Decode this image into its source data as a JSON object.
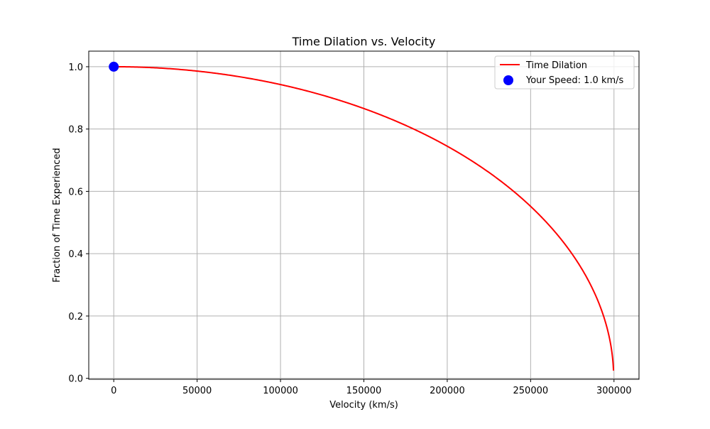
{
  "chart_data": {
    "type": "line",
    "title": "Time Dilation vs. Velocity",
    "xlabel": "Velocity (km/s)",
    "ylabel": "Fraction of Time Experienced",
    "xlim": [
      -15000,
      315000
    ],
    "ylim": [
      -0.003,
      1.05
    ],
    "xticks": [
      0,
      50000,
      100000,
      150000,
      200000,
      250000,
      300000
    ],
    "xtick_labels": [
      "0",
      "50000",
      "100000",
      "150000",
      "200000",
      "250000",
      "300000"
    ],
    "yticks": [
      0.0,
      0.2,
      0.4,
      0.6,
      0.8,
      1.0
    ],
    "ytick_labels": [
      "0.0",
      "0.2",
      "0.4",
      "0.6",
      "0.8",
      "1.0"
    ],
    "grid": true,
    "legend_position": "top-right",
    "speed_of_light_kms": 299792.458,
    "series": [
      {
        "name": "Time Dilation",
        "kind": "line",
        "color": "#ff0000",
        "x": [
          0,
          20000,
          40000,
          60000,
          80000,
          100000,
          120000,
          140000,
          160000,
          180000,
          200000,
          220000,
          240000,
          250000,
          260000,
          270000,
          280000,
          285000,
          290000,
          293000,
          296000,
          298000,
          299000,
          299700
        ],
        "y": [
          1.0,
          0.9978,
          0.991,
          0.9798,
          0.9637,
          0.9427,
          0.9164,
          0.8843,
          0.8457,
          0.7997,
          0.745,
          0.6794,
          0.5994,
          0.5516,
          0.4978,
          0.4348,
          0.3572,
          0.3102,
          0.2535,
          0.2116,
          0.1585,
          0.1115,
          0.0727,
          0.0248
        ]
      },
      {
        "name": "Your Speed: 1.0 km/s",
        "kind": "scatter",
        "color": "#0000ff",
        "x": [
          1.0
        ],
        "y": [
          1.0
        ]
      }
    ]
  }
}
